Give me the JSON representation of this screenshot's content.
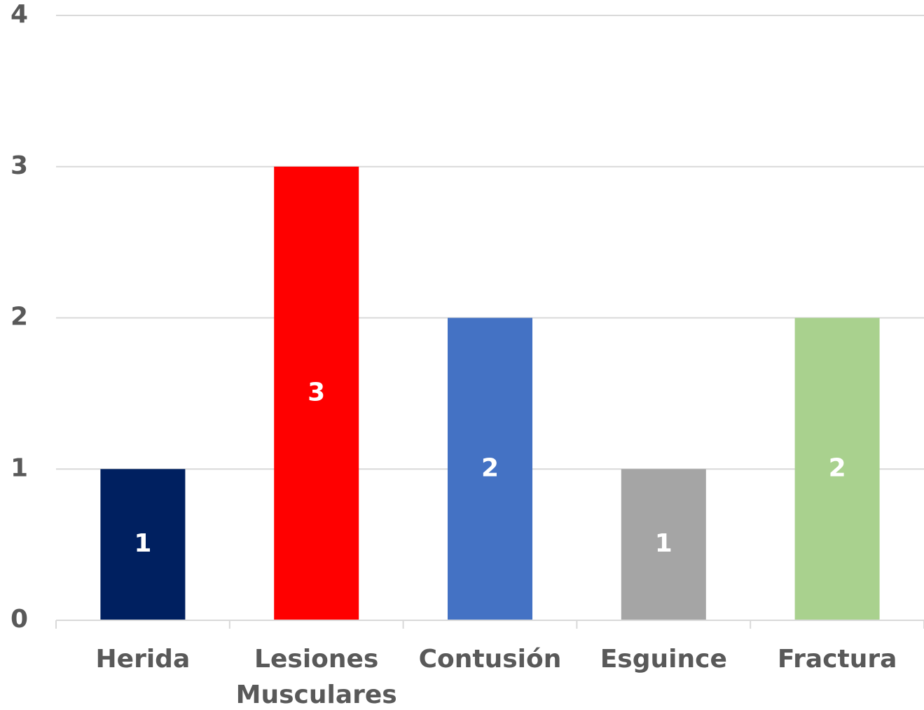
{
  "chart_data": {
    "type": "bar",
    "categories": [
      "Herida",
      "Lesiones Musculares",
      "Contusión",
      "Esguince",
      "Fractura"
    ],
    "values": [
      1,
      3,
      2,
      1,
      2
    ],
    "colors": [
      "#002060",
      "#ff0000",
      "#4472c4",
      "#a5a5a5",
      "#a9d18e"
    ],
    "ylim": [
      0,
      4
    ],
    "yticks": [
      0,
      1,
      2,
      3,
      4
    ],
    "grid": true,
    "data_labels": true
  }
}
